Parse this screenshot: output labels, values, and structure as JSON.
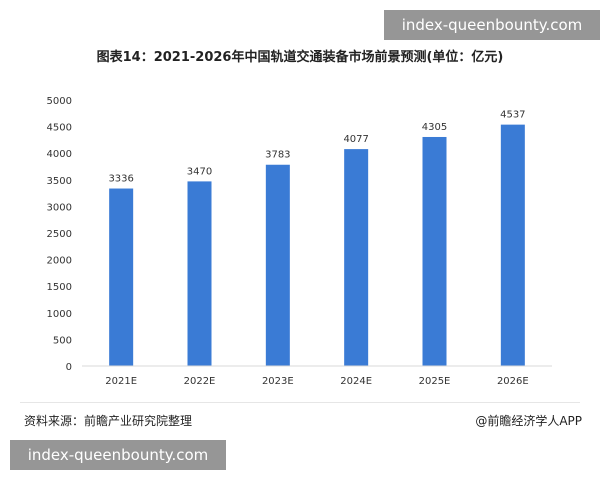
{
  "watermark": {
    "top_url": "index-queenbounty.com",
    "bottom_url": "index-queenbounty.com"
  },
  "footer": {
    "source": "资料来源：前瞻产业研究院整理",
    "credit": "@前瞻经济学人APP"
  },
  "colors": {
    "bar": "#3a7bd5",
    "axis": "#d9d9d9",
    "text": "#333333"
  },
  "chart_data": {
    "type": "bar",
    "title": "图表14：2021-2026年中国轨道交通装备市场前景预测(单位：亿元)",
    "categories": [
      "2021E",
      "2022E",
      "2023E",
      "2024E",
      "2025E",
      "2026E"
    ],
    "values": [
      3336,
      3470,
      3783,
      4077,
      4305,
      4537
    ],
    "data_labels": [
      "3336",
      "3470",
      "3783",
      "4077",
      "4305",
      "4537"
    ],
    "ylim": [
      0,
      5000
    ],
    "yticks": [
      "0",
      "500",
      "1000",
      "1500",
      "2000",
      "2500",
      "3000",
      "3500",
      "4000",
      "4500",
      "5000"
    ],
    "xlabel": "",
    "ylabel": "",
    "grid": false,
    "legend": "none"
  }
}
